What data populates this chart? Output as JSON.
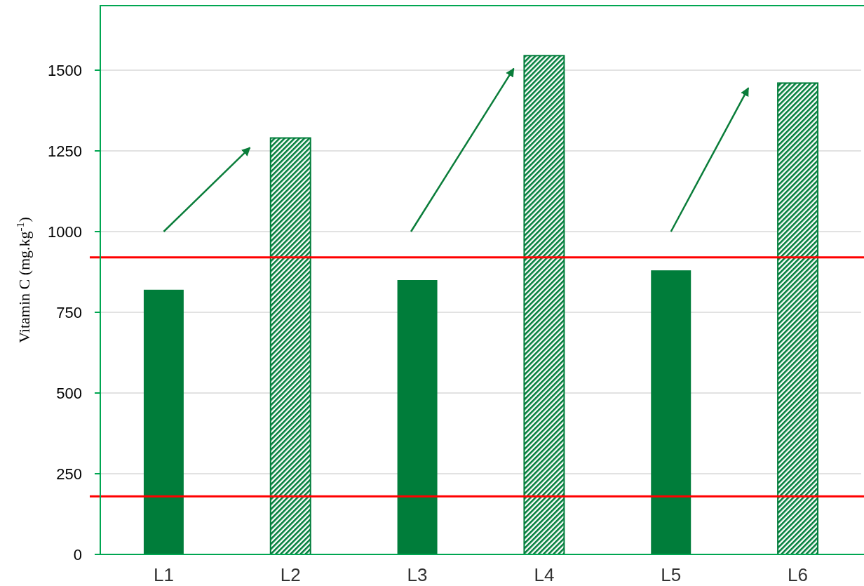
{
  "chart_data": {
    "type": "bar",
    "ylabel": "Vitamin C (mg.kg$^{-1}$)",
    "categories": [
      "L1",
      "L2",
      "L3",
      "L4",
      "L5",
      "L6"
    ],
    "series": [
      {
        "color": "#007d3a",
        "values": [
          820,
          null,
          850,
          null,
          880,
          null
        ]
      },
      {
        "color": "#007d3a",
        "values": [
          null,
          1290,
          null,
          1545,
          null,
          1460
        ]
      }
    ],
    "ylim": [
      0,
      1700
    ],
    "yticks": [
      0,
      250,
      500,
      750,
      1000,
      1250,
      1500
    ],
    "grid": "y",
    "ref_lines": [
      {
        "axis": "y",
        "value": 920,
        "color": "#ff0000"
      },
      {
        "axis": "y",
        "value": 180,
        "color": "#ff0000"
      }
    ]
  }
}
